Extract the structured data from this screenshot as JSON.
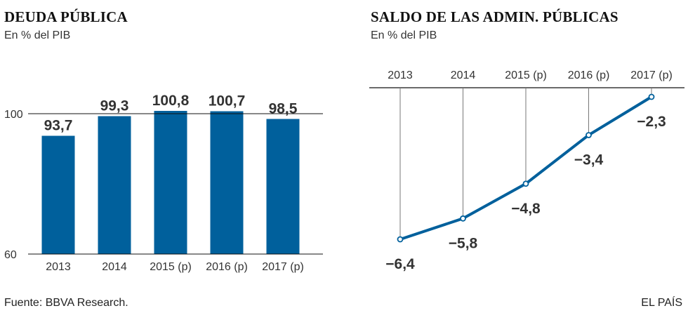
{
  "chart_data": [
    {
      "type": "bar",
      "title": "DEUDA PÚBLICA",
      "subtitle": "En % del PIB",
      "categories": [
        "2013",
        "2014",
        "2015 (p)",
        "2016 (p)",
        "2017 (p)"
      ],
      "values": [
        93.7,
        99.3,
        100.8,
        100.7,
        98.5
      ],
      "value_labels": [
        "93,7",
        "99,3",
        "100,8",
        "100,7",
        "98,5"
      ],
      "y_ticks": [
        "60",
        "100"
      ],
      "ylim": [
        60,
        100
      ],
      "color": "#00609c"
    },
    {
      "type": "line",
      "title": "SALDO DE LAS ADMIN. PÚBLICAS",
      "subtitle": "En % del PIB",
      "categories": [
        "2013",
        "2014",
        "2015 (p)",
        "2016 (p)",
        "2017 (p)"
      ],
      "values": [
        -6.4,
        -5.8,
        -4.8,
        -3.4,
        -2.3
      ],
      "value_labels": [
        "−6,4",
        "−5,8",
        "−4,8",
        "−3,4",
        "−2,3"
      ],
      "color": "#00609c"
    }
  ],
  "footer": {
    "source": "Fuente: BBVA Research.",
    "brand": "EL PAÍS"
  }
}
